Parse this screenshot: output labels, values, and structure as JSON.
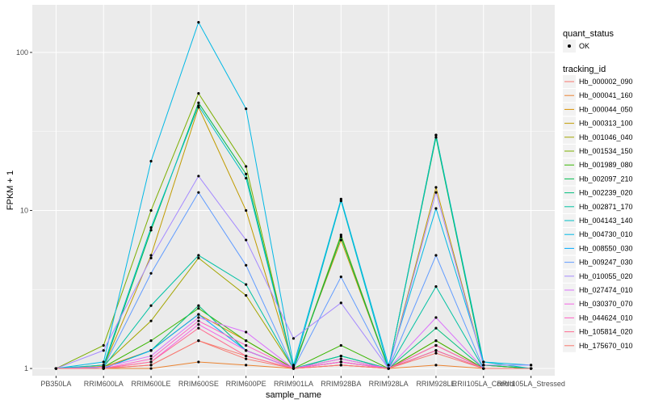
{
  "chart_data": {
    "type": "line",
    "xlabel": "sample_name",
    "ylabel": "FPKM + 1",
    "y_scale": "log10",
    "ylim": [
      0.9,
      200
    ],
    "yticks": [
      1,
      10,
      100
    ],
    "ytick_labels": [
      "1",
      "10",
      "100"
    ],
    "categories": [
      "PB350LA",
      "RRIM600LA",
      "RRIM600LE",
      "RRIM600SE",
      "RRIM600PE",
      "RRIM901LA",
      "RRIM928BA",
      "RRIM928LA",
      "RRIM928LE",
      "RRII105LA_Control",
      "RRII105LA_Stressed"
    ],
    "grid": true,
    "panel_background": "#ebebeb",
    "point_color": "#000000",
    "legend_placement": "right",
    "legends": {
      "shape": {
        "title": "quant_status",
        "entries": [
          "OK"
        ]
      },
      "color": {
        "title": "tracking_id"
      }
    },
    "series": [
      {
        "name": "Hb_000002_090",
        "color": "#F8766D",
        "values": [
          1.0,
          1.0,
          1.05,
          1.5,
          1.2,
          1.0,
          1.1,
          1.0,
          1.4,
          1.0,
          1.0
        ]
      },
      {
        "name": "Hb_000041_160",
        "color": "#EA8331",
        "values": [
          1.0,
          1.0,
          1.0,
          1.1,
          1.05,
          1.0,
          1.05,
          1.0,
          1.05,
          1.0,
          1.0
        ]
      },
      {
        "name": "Hb_000044_050",
        "color": "#D89000",
        "values": [
          1.0,
          1.02,
          1.3,
          2.2,
          1.5,
          1.0,
          1.15,
          1.0,
          1.5,
          1.0,
          1.0
        ]
      },
      {
        "name": "Hb_000313_100",
        "color": "#C09B00",
        "values": [
          1.0,
          1.03,
          5.2,
          45.0,
          10.0,
          1.03,
          6.5,
          1.0,
          14.0,
          1.05,
          1.0
        ]
      },
      {
        "name": "Hb_001046_040",
        "color": "#A3A500",
        "values": [
          1.0,
          1.05,
          2.0,
          5.0,
          2.9,
          1.0,
          1.2,
          1.0,
          1.4,
          1.0,
          1.0
        ]
      },
      {
        "name": "Hb_001534_150",
        "color": "#7CAE00",
        "values": [
          1.0,
          1.4,
          10.0,
          55.0,
          19.0,
          1.0,
          7.0,
          1.0,
          30.0,
          1.05,
          1.0
        ]
      },
      {
        "name": "Hb_001989_080",
        "color": "#39B600",
        "values": [
          1.0,
          1.02,
          1.5,
          2.4,
          1.5,
          1.0,
          1.4,
          1.0,
          1.5,
          1.0,
          1.0
        ]
      },
      {
        "name": "Hb_002097_210",
        "color": "#00BB4E",
        "values": [
          1.0,
          1.02,
          7.5,
          48.0,
          17.0,
          1.0,
          6.8,
          1.0,
          29.0,
          1.05,
          1.0
        ]
      },
      {
        "name": "Hb_002239_020",
        "color": "#00BF7D",
        "values": [
          1.0,
          1.0,
          1.3,
          2.5,
          1.3,
          1.0,
          1.2,
          1.0,
          1.8,
          1.0,
          1.0
        ]
      },
      {
        "name": "Hb_002871_170",
        "color": "#00C1A3",
        "values": [
          1.0,
          1.02,
          2.5,
          5.2,
          3.4,
          1.0,
          1.2,
          1.0,
          3.3,
          1.0,
          1.0
        ]
      },
      {
        "name": "Hb_004143_140",
        "color": "#00BFC4",
        "values": [
          1.0,
          1.05,
          7.8,
          46.0,
          16.0,
          1.0,
          11.5,
          1.0,
          30.0,
          1.1,
          1.0
        ]
      },
      {
        "name": "Hb_004730_010",
        "color": "#00B8E5",
        "values": [
          1.0,
          1.1,
          20.5,
          155.0,
          44.0,
          1.05,
          11.8,
          1.05,
          10.3,
          1.1,
          1.05
        ]
      },
      {
        "name": "Hb_008550_030",
        "color": "#00ABFD",
        "values": [
          1.0,
          1.0,
          1.3,
          2.2,
          1.3,
          1.0,
          1.1,
          1.0,
          1.3,
          1.0,
          1.0
        ]
      },
      {
        "name": "Hb_009247_030",
        "color": "#619CFF",
        "values": [
          1.0,
          1.02,
          4.0,
          13.0,
          4.5,
          1.0,
          3.8,
          1.0,
          5.2,
          1.0,
          1.0
        ]
      },
      {
        "name": "Hb_010055_020",
        "color": "#A58AFF",
        "values": [
          1.0,
          1.3,
          5.0,
          16.5,
          6.5,
          1.55,
          2.6,
          1.0,
          13.0,
          1.05,
          1.05
        ]
      },
      {
        "name": "Hb_027474_010",
        "color": "#DB72FB",
        "values": [
          1.0,
          1.02,
          1.2,
          2.1,
          1.7,
          1.0,
          1.15,
          1.0,
          2.1,
          1.0,
          1.0
        ]
      },
      {
        "name": "Hb_030370_070",
        "color": "#F564E3",
        "values": [
          1.0,
          1.0,
          1.1,
          1.9,
          1.3,
          1.0,
          1.1,
          1.0,
          1.3,
          1.0,
          1.0
        ]
      },
      {
        "name": "Hb_044624_010",
        "color": "#FF61C3",
        "values": [
          1.0,
          1.0,
          1.15,
          2.0,
          1.4,
          1.0,
          1.1,
          1.0,
          1.4,
          1.0,
          1.0
        ]
      },
      {
        "name": "Hb_105814_020",
        "color": "#FF6C91",
        "values": [
          1.0,
          1.0,
          1.1,
          1.8,
          1.2,
          1.0,
          1.05,
          1.0,
          1.3,
          1.0,
          1.0
        ]
      },
      {
        "name": "Hb_175670_010",
        "color": "#F8766D",
        "values": [
          1.0,
          1.0,
          1.05,
          1.5,
          1.15,
          1.0,
          1.05,
          1.0,
          1.25,
          1.0,
          1.0
        ]
      }
    ]
  }
}
